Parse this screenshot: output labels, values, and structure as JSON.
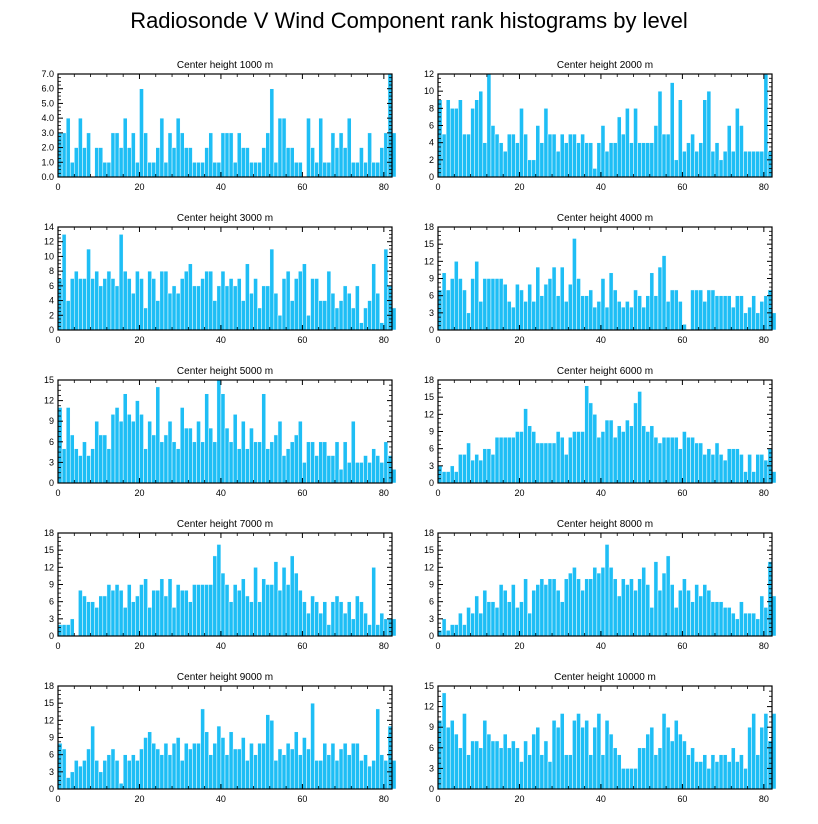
{
  "title": "Radiosonde V Wind Component rank histograms by level",
  "bar_color": "#1EBEF5",
  "chart_data": [
    {
      "type": "bar",
      "title": "Center height 1000 m",
      "xlim": [
        0,
        82
      ],
      "ylim": [
        0,
        7
      ],
      "xticks": [
        0,
        20,
        40,
        60,
        80
      ],
      "yticks": [
        0,
        1,
        2,
        3,
        4,
        5,
        6,
        7
      ],
      "ytick_labels": [
        "0.0",
        "1.0",
        "2.0",
        "3.0",
        "4.0",
        "5.0",
        "6.0",
        "7.0"
      ],
      "values": [
        3,
        3,
        4,
        1,
        2,
        4,
        2,
        3,
        0,
        2,
        2,
        1,
        1,
        3,
        3,
        2,
        4,
        2,
        3,
        1,
        6,
        3,
        1,
        1,
        2,
        4,
        1,
        3,
        2,
        4,
        3,
        2,
        2,
        1,
        1,
        1,
        2,
        3,
        1,
        1,
        3,
        3,
        3,
        1,
        3,
        2,
        2,
        1,
        1,
        1,
        2,
        3,
        6,
        1,
        4,
        4,
        2,
        2,
        1,
        1,
        0,
        4,
        2,
        1,
        4,
        1,
        1,
        3,
        2,
        3,
        2,
        4,
        1,
        1,
        2,
        1,
        3,
        1,
        1,
        2,
        3,
        7,
        3
      ]
    },
    {
      "type": "bar",
      "title": "Center height 2000 m",
      "xlim": [
        0,
        82
      ],
      "ylim": [
        0,
        12
      ],
      "xticks": [
        0,
        20,
        40,
        60,
        80
      ],
      "yticks": [
        0,
        2,
        4,
        6,
        8,
        10,
        12
      ],
      "ytick_labels": [
        "0",
        "2",
        "4",
        "6",
        "8",
        "10",
        "12"
      ],
      "values": [
        9,
        5,
        9,
        8,
        8,
        9,
        5,
        5,
        8,
        9,
        10,
        4,
        12,
        6,
        5,
        4,
        3,
        5,
        5,
        4,
        8,
        5,
        2,
        2,
        6,
        4,
        8,
        5,
        5,
        3,
        5,
        4,
        5,
        5,
        4,
        5,
        4,
        4,
        1,
        4,
        6,
        3,
        4,
        4,
        7,
        5,
        8,
        4,
        8,
        4,
        4,
        4,
        4,
        6,
        10,
        5,
        5,
        11,
        2,
        9,
        3,
        4,
        5,
        3,
        4,
        9,
        10,
        3,
        4,
        2,
        3,
        6,
        3,
        8,
        6,
        3,
        3,
        3,
        3,
        3,
        12,
        3,
        0
      ]
    },
    {
      "type": "bar",
      "title": "Center height 3000 m",
      "xlim": [
        0,
        82
      ],
      "ylim": [
        0,
        14
      ],
      "xticks": [
        0,
        20,
        40,
        60,
        80
      ],
      "yticks": [
        0,
        2,
        4,
        6,
        8,
        10,
        12,
        14
      ],
      "ytick_labels": [
        "0",
        "2",
        "4",
        "6",
        "8",
        "10",
        "12",
        "14"
      ],
      "values": [
        7,
        13,
        4,
        7,
        8,
        7,
        7,
        11,
        7,
        8,
        6,
        7,
        8,
        7,
        6,
        13,
        8,
        7,
        5,
        8,
        7,
        3,
        8,
        7,
        4,
        8,
        8,
        5,
        6,
        5,
        7,
        8,
        9,
        6,
        6,
        7,
        8,
        8,
        4,
        6,
        8,
        6,
        7,
        6,
        7,
        4,
        9,
        5,
        7,
        3,
        6,
        6,
        11,
        5,
        2,
        7,
        8,
        4,
        7,
        8,
        9,
        2,
        7,
        7,
        4,
        4,
        8,
        5,
        3,
        4,
        6,
        5,
        3,
        6,
        1,
        3,
        4,
        9,
        5,
        1,
        11,
        6,
        3
      ]
    },
    {
      "type": "bar",
      "title": "Center height 4000 m",
      "xlim": [
        0,
        82
      ],
      "ylim": [
        0,
        18
      ],
      "xticks": [
        0,
        20,
        40,
        60,
        80
      ],
      "yticks": [
        0,
        3,
        6,
        9,
        12,
        15,
        18
      ],
      "ytick_labels": [
        "0",
        "3",
        "6",
        "9",
        "12",
        "15",
        "18"
      ],
      "values": [
        7,
        10,
        7,
        9,
        12,
        9,
        7,
        3,
        9,
        12,
        5,
        9,
        9,
        9,
        9,
        9,
        8,
        5,
        4,
        8,
        7,
        5,
        8,
        5,
        11,
        6,
        8,
        9,
        11,
        6,
        11,
        5,
        8,
        16,
        9,
        6,
        6,
        7,
        4,
        5,
        9,
        4,
        10,
        7,
        5,
        4,
        5,
        4,
        7,
        6,
        4,
        6,
        10,
        6,
        11,
        13,
        5,
        7,
        7,
        5,
        1,
        0,
        7,
        7,
        7,
        5,
        7,
        7,
        6,
        6,
        6,
        6,
        4,
        6,
        6,
        3,
        4,
        6,
        3,
        5,
        6,
        7,
        3
      ]
    },
    {
      "type": "bar",
      "title": "Center height 5000 m",
      "xlim": [
        0,
        82
      ],
      "ylim": [
        0,
        15
      ],
      "xticks": [
        0,
        20,
        40,
        60,
        80
      ],
      "yticks": [
        0,
        3,
        6,
        9,
        12,
        15
      ],
      "ytick_labels": [
        "0",
        "3",
        "6",
        "9",
        "12",
        "15"
      ],
      "values": [
        11,
        5,
        11,
        7,
        5,
        4,
        6,
        4,
        5,
        9,
        7,
        7,
        5,
        10,
        11,
        9,
        13,
        10,
        9,
        12,
        10,
        5,
        9,
        7,
        14,
        6,
        7,
        9,
        6,
        5,
        11,
        8,
        8,
        6,
        9,
        6,
        13,
        8,
        6,
        15,
        13,
        8,
        6,
        10,
        5,
        9,
        5,
        8,
        6,
        6,
        13,
        5,
        6,
        7,
        9,
        4,
        5,
        6,
        7,
        9,
        3,
        6,
        6,
        4,
        6,
        6,
        4,
        4,
        6,
        2,
        6,
        3,
        9,
        3,
        3,
        4,
        3,
        5,
        4,
        3,
        6,
        4,
        2
      ]
    },
    {
      "type": "bar",
      "title": "Center height 6000 m",
      "xlim": [
        0,
        82
      ],
      "ylim": [
        0,
        18
      ],
      "xticks": [
        0,
        20,
        40,
        60,
        80
      ],
      "yticks": [
        0,
        3,
        6,
        9,
        12,
        15,
        18
      ],
      "ytick_labels": [
        "0",
        "3",
        "6",
        "9",
        "12",
        "15",
        "18"
      ],
      "values": [
        3,
        2,
        2,
        3,
        2,
        5,
        5,
        7,
        4,
        5,
        4,
        6,
        6,
        5,
        8,
        8,
        8,
        8,
        8,
        9,
        9,
        13,
        10,
        9,
        7,
        7,
        7,
        7,
        7,
        9,
        8,
        5,
        8,
        9,
        9,
        9,
        17,
        14,
        12,
        8,
        9,
        11,
        11,
        8,
        10,
        9,
        11,
        10,
        14,
        16,
        10,
        9,
        10,
        8,
        7,
        8,
        8,
        8,
        8,
        6,
        9,
        8,
        8,
        7,
        7,
        5,
        6,
        5,
        7,
        5,
        4,
        6,
        6,
        6,
        5,
        2,
        5,
        2,
        5,
        5,
        4,
        6,
        2
      ]
    },
    {
      "type": "bar",
      "title": "Center height 7000 m",
      "xlim": [
        0,
        82
      ],
      "ylim": [
        0,
        18
      ],
      "xticks": [
        0,
        20,
        40,
        60,
        80
      ],
      "yticks": [
        0,
        3,
        6,
        9,
        12,
        15,
        18
      ],
      "ytick_labels": [
        "0",
        "3",
        "6",
        "9",
        "12",
        "15",
        "18"
      ],
      "values": [
        2,
        2,
        2,
        3,
        0,
        8,
        7,
        6,
        6,
        5,
        7,
        7,
        9,
        8,
        9,
        8,
        5,
        9,
        6,
        7,
        9,
        10,
        5,
        8,
        8,
        10,
        7,
        10,
        5,
        9,
        8,
        8,
        6,
        9,
        9,
        9,
        9,
        9,
        14,
        16,
        11,
        9,
        6,
        9,
        8,
        10,
        7,
        6,
        12,
        6,
        10,
        9,
        9,
        13,
        8,
        12,
        9,
        14,
        11,
        8,
        6,
        4,
        7,
        6,
        4,
        6,
        2,
        6,
        7,
        6,
        4,
        6,
        3,
        7,
        6,
        4,
        2,
        12,
        2,
        4,
        3,
        3,
        3
      ]
    },
    {
      "type": "bar",
      "title": "Center height 8000 m",
      "xlim": [
        0,
        82
      ],
      "ylim": [
        0,
        18
      ],
      "xticks": [
        0,
        20,
        40,
        60,
        80
      ],
      "yticks": [
        0,
        3,
        6,
        9,
        12,
        15,
        18
      ],
      "ytick_labels": [
        "0",
        "3",
        "6",
        "9",
        "12",
        "15",
        "18"
      ],
      "values": [
        1,
        3,
        1,
        2,
        2,
        4,
        2,
        5,
        4,
        7,
        4,
        8,
        6,
        6,
        5,
        9,
        8,
        6,
        9,
        5,
        6,
        10,
        4,
        8,
        9,
        10,
        9,
        10,
        10,
        8,
        6,
        10,
        11,
        12,
        10,
        8,
        10,
        10,
        12,
        11,
        12,
        16,
        12,
        10,
        7,
        10,
        9,
        10,
        8,
        10,
        12,
        9,
        5,
        13,
        8,
        11,
        14,
        9,
        5,
        8,
        10,
        8,
        6,
        9,
        7,
        9,
        8,
        6,
        6,
        6,
        5,
        5,
        4,
        3,
        6,
        4,
        4,
        4,
        3,
        7,
        5,
        13,
        7
      ]
    },
    {
      "type": "bar",
      "title": "Center height 9000 m",
      "xlim": [
        0,
        82
      ],
      "ylim": [
        0,
        18
      ],
      "xticks": [
        0,
        20,
        40,
        60,
        80
      ],
      "yticks": [
        0,
        3,
        6,
        9,
        12,
        15,
        18
      ],
      "ytick_labels": [
        "0",
        "3",
        "6",
        "9",
        "12",
        "15",
        "18"
      ],
      "values": [
        8,
        7,
        2,
        3,
        5,
        4,
        5,
        7,
        11,
        5,
        3,
        5,
        6,
        7,
        5,
        1,
        6,
        5,
        6,
        5,
        7,
        9,
        10,
        8,
        7,
        6,
        8,
        6,
        8,
        9,
        5,
        8,
        7,
        8,
        8,
        14,
        10,
        6,
        8,
        11,
        9,
        6,
        10,
        7,
        7,
        9,
        5,
        8,
        6,
        8,
        8,
        13,
        12,
        5,
        7,
        6,
        8,
        7,
        10,
        6,
        9,
        7,
        15,
        5,
        5,
        8,
        6,
        8,
        5,
        7,
        8,
        6,
        8,
        8,
        5,
        6,
        4,
        5,
        14,
        6,
        5,
        11,
        5
      ]
    },
    {
      "type": "bar",
      "title": "Center height 10000 m",
      "xlim": [
        0,
        82
      ],
      "ylim": [
        0,
        15
      ],
      "xticks": [
        0,
        20,
        40,
        60,
        80
      ],
      "yticks": [
        0,
        3,
        6,
        9,
        12,
        15
      ],
      "ytick_labels": [
        "0",
        "3",
        "6",
        "9",
        "12",
        "15"
      ],
      "values": [
        10,
        14,
        9,
        10,
        8,
        6,
        11,
        5,
        7,
        7,
        6,
        10,
        8,
        7,
        7,
        6,
        8,
        6,
        7,
        6,
        4,
        7,
        5,
        8,
        9,
        5,
        7,
        4,
        10,
        9,
        11,
        5,
        5,
        10,
        11,
        9,
        10,
        5,
        9,
        11,
        5,
        10,
        8,
        6,
        5,
        3,
        3,
        3,
        3,
        6,
        6,
        8,
        9,
        5,
        6,
        11,
        9,
        7,
        10,
        8,
        7,
        5,
        6,
        4,
        4,
        5,
        3,
        5,
        4,
        5,
        5,
        4,
        6,
        4,
        5,
        3,
        9,
        11,
        5,
        9,
        11,
        7,
        11
      ]
    }
  ]
}
